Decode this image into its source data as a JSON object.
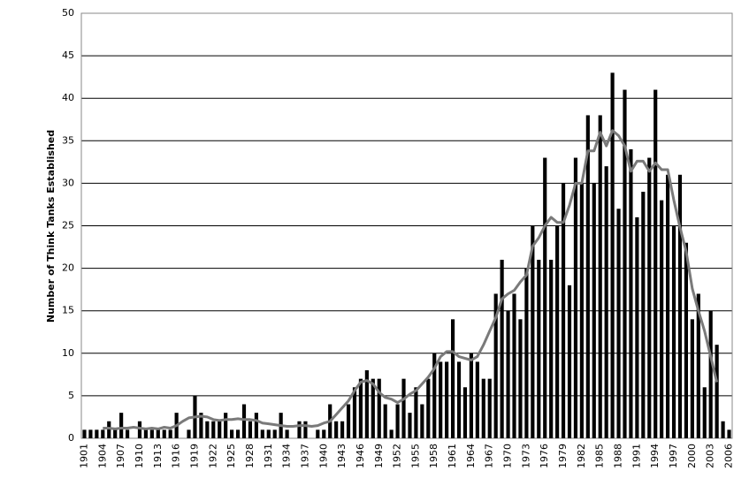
{
  "chart_data": {
    "type": "bar",
    "y_label": "Number of Think Tanks Established",
    "categories": [
      "1901",
      null,
      null,
      "1904",
      null,
      null,
      "1907",
      null,
      null,
      "1910",
      null,
      null,
      "1913",
      null,
      null,
      "1916",
      null,
      null,
      "1919",
      null,
      null,
      "1922",
      null,
      null,
      "1925",
      null,
      null,
      "1928",
      null,
      null,
      "1931",
      null,
      null,
      "1934",
      null,
      null,
      "1937",
      null,
      null,
      "1940",
      null,
      null,
      "1943",
      null,
      null,
      "1946",
      null,
      null,
      "1949",
      null,
      null,
      "1952",
      null,
      null,
      "1955",
      null,
      null,
      "1958",
      null,
      null,
      "1961",
      null,
      null,
      "1964",
      null,
      null,
      "1967",
      null,
      null,
      "1970",
      null,
      null,
      "1973",
      null,
      null,
      "1976",
      null,
      null,
      "1979",
      null,
      null,
      "1982",
      null,
      null,
      "1985",
      null,
      null,
      "1988",
      null,
      null,
      "1991",
      null,
      null,
      "1994",
      null,
      null,
      "1997",
      null,
      null,
      "2000",
      null,
      null,
      "2003",
      null,
      null,
      "2006"
    ],
    "series": [
      {
        "type": "bar",
        "color": "#000000",
        "values": [
          1,
          1,
          1,
          1,
          2,
          1,
          3,
          1,
          0,
          2,
          1,
          1,
          1,
          1,
          1,
          3,
          0,
          1,
          5,
          3,
          2,
          2,
          2,
          3,
          1,
          1,
          4,
          2,
          3,
          1,
          1,
          1,
          3,
          1,
          0,
          2,
          2,
          0,
          1,
          1,
          4,
          2,
          2,
          4,
          6,
          7,
          8,
          7,
          7,
          4,
          1,
          4,
          7,
          3,
          6,
          4,
          7,
          10,
          9,
          9,
          14,
          9,
          6,
          10,
          9,
          7,
          7,
          17,
          21,
          15,
          17,
          14,
          20,
          25,
          21,
          33,
          21,
          25,
          30,
          18,
          33,
          30,
          38,
          30,
          38,
          32,
          43,
          27,
          41,
          34,
          26,
          29,
          33,
          41,
          28,
          31,
          25,
          31,
          23,
          14,
          17,
          6,
          15,
          11,
          2,
          1
        ]
      },
      {
        "type": "line",
        "color": "#7a7a7a",
        "values": [
          null,
          null,
          null,
          1.2,
          1.2,
          1.1,
          1.2,
          1.2,
          1.3,
          1.2,
          1.1,
          1.2,
          1.1,
          1.3,
          1.2,
          1.5,
          2,
          2.4,
          2.5,
          2.6,
          2.5,
          2.2,
          2.1,
          2.2,
          2.2,
          2.3,
          2.2,
          2.2,
          2.1,
          1.8,
          1.7,
          1.6,
          1.5,
          1.4,
          1.4,
          1.5,
          1.5,
          1.4,
          1.5,
          1.8,
          2,
          2.8,
          3.6,
          4.4,
          5.6,
          6.6,
          6.8,
          6.4,
          5.4,
          4.8,
          4.6,
          4.2,
          4.6,
          5.2,
          5.6,
          6.4,
          7.2,
          8.2,
          9.6,
          10.2,
          10.2,
          9.6,
          9.4,
          9.2,
          9.6,
          11,
          12.6,
          14.2,
          16.4,
          17,
          17.4,
          18.4,
          19.2,
          22.6,
          23.6,
          25,
          26,
          25.4,
          25.4,
          27.4,
          30,
          30,
          33.8,
          33.8,
          36,
          34.4,
          36.2,
          35.6,
          34.4,
          31.4,
          32.6,
          32.6,
          31.4,
          32.4,
          31.6,
          31.6,
          28,
          24.8,
          22,
          17.6,
          15,
          12.6,
          9.6,
          6.6,
          null,
          null
        ]
      }
    ],
    "ylim": [
      0,
      50
    ],
    "yticks": [
      0,
      5,
      10,
      15,
      20,
      25,
      30,
      35,
      40,
      45,
      50
    ],
    "grid": true
  }
}
